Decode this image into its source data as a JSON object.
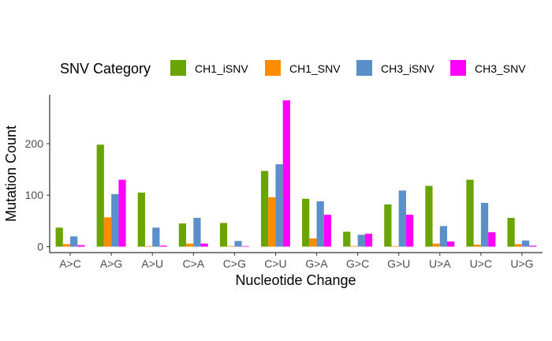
{
  "chart_data": {
    "type": "bar",
    "xlabel": "Nucleotide Change",
    "ylabel": "Mutation Count",
    "legend_title": "SNV Category",
    "legend_position": "top",
    "grid": false,
    "ylim": [
      0,
      295
    ],
    "yticks": [
      0,
      100,
      200
    ],
    "categories": [
      "A>C",
      "A>G",
      "A>U",
      "C>A",
      "C>G",
      "C>U",
      "G>A",
      "G>C",
      "G>U",
      "U>A",
      "U>C",
      "U>G"
    ],
    "series": [
      {
        "name": "CH1_iSNV",
        "color": "#6aa400",
        "values": [
          37,
          198,
          105,
          45,
          46,
          147,
          93,
          29,
          82,
          118,
          130,
          56
        ]
      },
      {
        "name": "CH1_SNV",
        "color": "#ff8c00",
        "values": [
          5,
          57,
          1,
          6,
          1,
          96,
          16,
          1,
          1,
          6,
          4,
          5
        ]
      },
      {
        "name": "CH3_iSNV",
        "color": "#5b8fc9",
        "values": [
          20,
          102,
          37,
          56,
          11,
          160,
          88,
          23,
          109,
          40,
          85,
          12
        ]
      },
      {
        "name": "CH3_SNV",
        "color": "#ff00ff",
        "values": [
          3,
          130,
          2,
          6,
          1,
          284,
          62,
          25,
          62,
          10,
          28,
          2
        ]
      }
    ]
  }
}
